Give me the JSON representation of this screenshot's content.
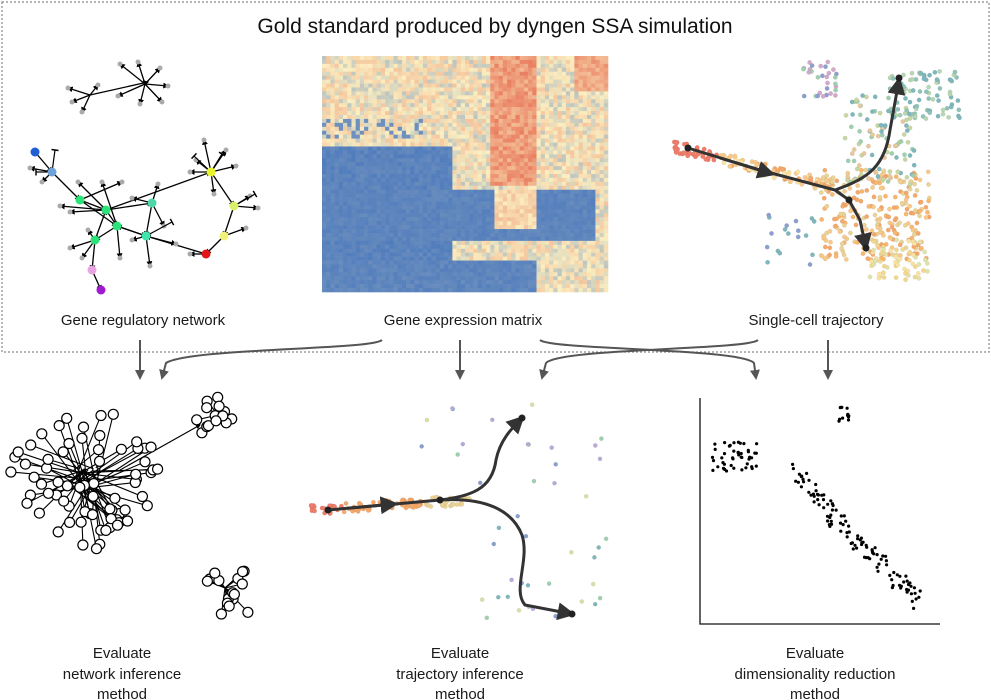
{
  "title": "Gold standard produced by dyngen SSA simulation",
  "panels": {
    "grn": "Gene regulatory network",
    "expr": "Gene expression matrix",
    "traj": "Single-cell trajectory"
  },
  "evaluations": {
    "network": [
      "Evaluate",
      "network inference",
      "method"
    ],
    "trajectory": [
      "Evaluate",
      "trajectory inference",
      "method"
    ],
    "dimred": [
      "Evaluate",
      "dimensionality reduction",
      "method"
    ]
  },
  "colors": {
    "matrix_low": "#4a78bd",
    "matrix_mid": "#fbeec0",
    "matrix_high": "#e8775a",
    "arrow": "#555555",
    "box_border": "#888888"
  }
}
